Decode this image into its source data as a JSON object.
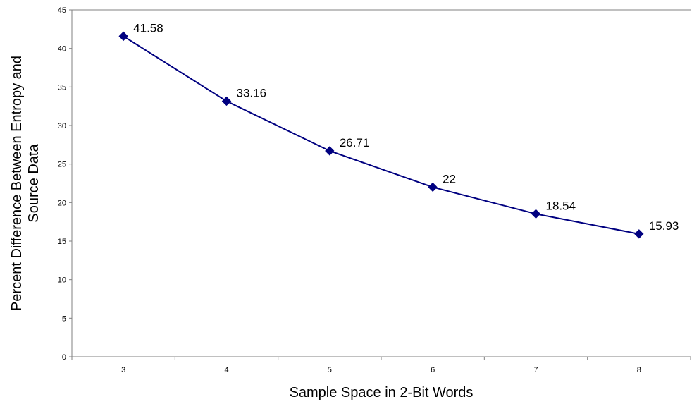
{
  "chart_data": {
    "type": "line",
    "title": "",
    "xlabel": "Sample Space in 2-Bit Words",
    "ylabel_lines": [
      "Percent Difference Between Entropy and",
      "Source Data"
    ],
    "x": [
      3,
      4,
      5,
      6,
      7,
      8
    ],
    "y": [
      41.58,
      33.16,
      26.71,
      22,
      18.54,
      15.93
    ],
    "data_labels": [
      "41.58",
      "33.16",
      "26.71",
      "22",
      "18.54",
      "15.93"
    ],
    "x_ticks": [
      "3",
      "4",
      "5",
      "6",
      "7",
      "8"
    ],
    "y_ticks": [
      "0",
      "5",
      "10",
      "15",
      "20",
      "25",
      "30",
      "35",
      "40",
      "45"
    ],
    "ylim": [
      0,
      45
    ],
    "grid": false,
    "legend": "none",
    "colors": {
      "series": "#000080",
      "axis": "#808080"
    }
  }
}
